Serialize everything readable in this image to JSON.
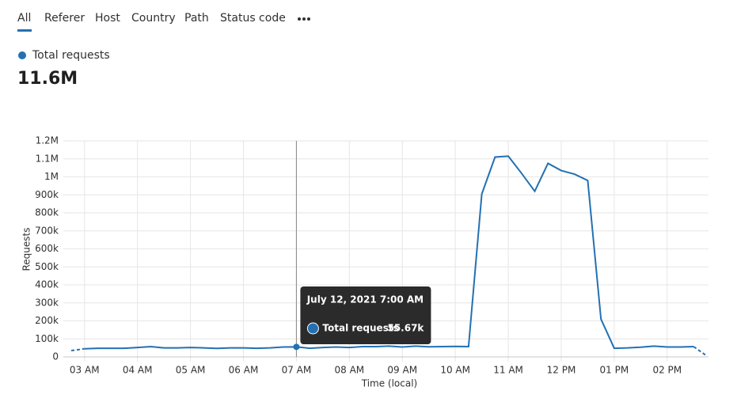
{
  "tabs": [
    "All",
    "Referer",
    "Host",
    "Country",
    "Path",
    "Status code"
  ],
  "summary_value": "11.6M",
  "chart_data": {
    "type": "line",
    "y_label": "Requests",
    "x_label": "Time (local)",
    "x": [
      2.75,
      3,
      3.25,
      3.5,
      3.75,
      4,
      4.25,
      4.5,
      4.75,
      5,
      5.25,
      5.5,
      5.75,
      6,
      6.25,
      6.5,
      6.75,
      7,
      7.25,
      7.5,
      7.75,
      8,
      8.25,
      8.5,
      8.75,
      9,
      9.25,
      9.5,
      9.75,
      10,
      10.25,
      10.5,
      10.75,
      11,
      11.25,
      11.5,
      11.75,
      12,
      12.25,
      12.5,
      12.75,
      13,
      13.25,
      13.5,
      13.75,
      14,
      14.25,
      14.5,
      14.75
    ],
    "series": [
      {
        "name": "Total requests",
        "color": "#2371b3",
        "values": [
          35000,
          45000,
          48000,
          48000,
          48000,
          52000,
          57000,
          50000,
          50000,
          52000,
          50000,
          47000,
          50000,
          50000,
          48000,
          50000,
          55000,
          55670,
          48000,
          52000,
          55000,
          52000,
          57000,
          57000,
          60000,
          55000,
          60000,
          56000,
          57000,
          58000,
          57000,
          905000,
          1110000,
          1115000,
          1020000,
          920000,
          1075000,
          1035000,
          1015000,
          980000,
          210000,
          48000,
          50000,
          54000,
          60000,
          55000,
          55000,
          57000,
          5000
        ],
        "value_labels": [
          null,
          null,
          null,
          null,
          null,
          null,
          null,
          null,
          null,
          null,
          null,
          null,
          null,
          null,
          null,
          null,
          null,
          "55.67k",
          null,
          null,
          null,
          null,
          null,
          null,
          null,
          null,
          null,
          null,
          null,
          null,
          null,
          null,
          null,
          null,
          null,
          null,
          null,
          null,
          null,
          null,
          null,
          null,
          null,
          null,
          null,
          null,
          null,
          null,
          null
        ]
      }
    ],
    "tooltip_title": "July 12, 2021 7:00 AM",
    "xlim": [
      2.6,
      14.78
    ],
    "xticks": [
      {
        "value": 3,
        "label": "03 AM"
      },
      {
        "value": 4,
        "label": "04 AM"
      },
      {
        "value": 5,
        "label": "05 AM"
      },
      {
        "value": 6,
        "label": "06 AM"
      },
      {
        "value": 7,
        "label": "07 AM"
      },
      {
        "value": 8,
        "label": "08 AM"
      },
      {
        "value": 9,
        "label": "09 AM"
      },
      {
        "value": 10,
        "label": "10 AM"
      },
      {
        "value": 11,
        "label": "11 AM"
      },
      {
        "value": 12,
        "label": "12 PM"
      },
      {
        "value": 13,
        "label": "01 PM"
      },
      {
        "value": 14,
        "label": "02 PM"
      }
    ],
    "ylim": [
      0,
      1200000
    ],
    "yticks": [
      0,
      {
        "value": 100000,
        "label": "100k"
      },
      {
        "value": 200000,
        "label": "200k"
      },
      {
        "value": 300000,
        "label": "300k"
      },
      {
        "value": 400000,
        "label": "400k"
      },
      {
        "value": 500000,
        "label": "500k"
      },
      {
        "value": 600000,
        "label": "600k"
      },
      {
        "value": 700000,
        "label": "700k"
      },
      {
        "value": 800000,
        "label": "800k"
      },
      {
        "value": 900000,
        "label": "900k"
      },
      {
        "value": 1000000,
        "label": "1M"
      },
      {
        "value": 1100000,
        "label": "1.1M"
      },
      {
        "value": 1200000,
        "label": "1.2M"
      }
    ],
    "grid": true
  }
}
